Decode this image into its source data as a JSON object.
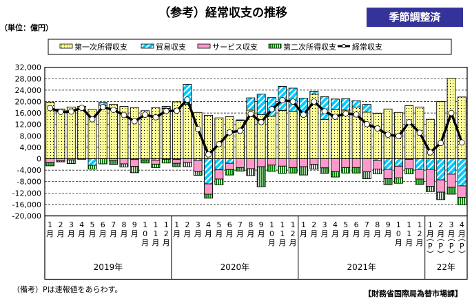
{
  "header": {
    "title": "（参考）経常収支の推移",
    "badge": "季節調整済",
    "unit": "（単位：億円）"
  },
  "footer": {
    "note": "（備考）Pは速報値をあらわす。",
    "source": "【財務省国際局為替市場課】"
  },
  "colors": {
    "primary": "#ffff99",
    "trade": "#00ccff",
    "services": "#ff99cc",
    "secondary": "#008000",
    "line": "#000000",
    "badge": "#333399"
  },
  "chart_data": {
    "type": "bar",
    "title": "（参考）経常収支の推移",
    "ylabel": "億円",
    "ylim": [
      -20000,
      32000
    ],
    "yticks": [
      32000,
      28000,
      24000,
      20000,
      16000,
      12000,
      8000,
      4000,
      0,
      -4000,
      -8000,
      -12000,
      -16000,
      -20000
    ],
    "ytick_labels": [
      "32,000",
      "28,000",
      "24,000",
      "20,000",
      "16,000",
      "12,000",
      "8,000",
      "4,000",
      "0",
      "-4,000",
      "-8,000",
      "-12,000",
      "-16,000",
      "-20,000"
    ],
    "grid": true,
    "legend_position": "top",
    "months": [
      "1",
      "2",
      "3",
      "4",
      "5",
      "6",
      "7",
      "8",
      "9",
      "10",
      "11",
      "12",
      "1",
      "2",
      "3",
      "4",
      "5",
      "6",
      "7",
      "8",
      "9",
      "10",
      "11",
      "12",
      "1",
      "2",
      "3",
      "4",
      "5",
      "6",
      "7",
      "8",
      "9",
      "10",
      "11",
      "12",
      "1",
      "2",
      "3",
      "4"
    ],
    "month_suffix": "月",
    "preliminary_mark": "P",
    "preliminary": [
      false,
      false,
      false,
      false,
      false,
      false,
      false,
      false,
      false,
      false,
      false,
      false,
      false,
      false,
      false,
      false,
      false,
      false,
      false,
      false,
      false,
      false,
      false,
      false,
      false,
      false,
      false,
      false,
      false,
      false,
      false,
      false,
      false,
      false,
      false,
      false,
      true,
      true,
      true,
      true
    ],
    "years": [
      {
        "label": "2019年",
        "months": 12
      },
      {
        "label": "2020年",
        "months": 12
      },
      {
        "label": "2021年",
        "months": 12
      },
      {
        "label": "22年",
        "months": 4
      }
    ],
    "series": [
      {
        "name": "第一次所得収支",
        "type": "bar",
        "values": [
          19800,
          17400,
          18100,
          18300,
          17300,
          18700,
          19000,
          18300,
          17900,
          16800,
          17900,
          17600,
          19900,
          19000,
          16200,
          15200,
          14300,
          14700,
          13300,
          17000,
          15400,
          14900,
          16900,
          16600,
          15000,
          22600,
          13800,
          17100,
          17000,
          18100,
          16300,
          15900,
          17400,
          16200,
          18600,
          18100,
          13800,
          20000,
          28200,
          21600
        ]
      },
      {
        "name": "貿易収支",
        "type": "bar",
        "values": [
          0,
          0,
          0,
          -100,
          -2300,
          1000,
          0,
          0,
          -300,
          0,
          -500,
          700,
          -300,
          7000,
          -600,
          -8800,
          -3900,
          -1600,
          300,
          4300,
          7200,
          6500,
          8400,
          8100,
          6200,
          1000,
          7900,
          3800,
          4000,
          2200,
          2700,
          -600,
          -3700,
          -2600,
          -200,
          -3700,
          -3700,
          -7400,
          -5400,
          -9500
        ]
      },
      {
        "name": "サービス収支",
        "type": "bar",
        "values": [
          -1300,
          -700,
          -400,
          0,
          0,
          0,
          -600,
          -1800,
          -2400,
          -400,
          -1400,
          -200,
          -1300,
          -1300,
          -3800,
          -3600,
          -3200,
          -2200,
          -3100,
          -3500,
          -2800,
          -2200,
          -2600,
          -3100,
          -2800,
          -2000,
          -3200,
          -4500,
          -3100,
          -3100,
          -4600,
          -3000,
          -3300,
          -4100,
          -3300,
          -3400,
          -6000,
          -4300,
          -4600,
          -4000
        ]
      },
      {
        "name": "第二次所得収支",
        "type": "bar",
        "values": [
          -1200,
          -400,
          -1300,
          -100,
          -1300,
          -1800,
          -1400,
          -1100,
          -2200,
          -1100,
          -1200,
          -1300,
          -1200,
          -1500,
          -1400,
          -1400,
          -2000,
          -1900,
          -1200,
          -2400,
          -7000,
          -2200,
          -2500,
          -1900,
          -2900,
          -1600,
          -1900,
          -1900,
          -1900,
          -1900,
          -2400,
          -1700,
          -2100,
          -1900,
          -1800,
          -1900,
          -1800,
          -2600,
          -2400,
          -2600
        ]
      },
      {
        "name": "経常収支",
        "type": "line",
        "values": [
          17700,
          16400,
          16500,
          17800,
          13800,
          18100,
          17100,
          15300,
          13100,
          15400,
          14500,
          16700,
          16800,
          20700,
          10400,
          1500,
          5100,
          9200,
          9800,
          15700,
          12800,
          17300,
          20500,
          20000,
          15400,
          20000,
          16600,
          14700,
          15800,
          15500,
          12100,
          10600,
          8400,
          7900,
          12800,
          9100,
          2200,
          5500,
          16000,
          5700
        ]
      }
    ]
  }
}
